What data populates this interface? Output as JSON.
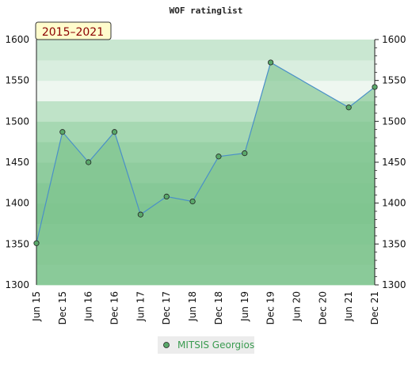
{
  "chart_data": {
    "type": "area",
    "title": "WOF ratinglist",
    "period_badge": "2015–2021",
    "ylim": [
      1300,
      1600
    ],
    "y_ticks": [
      1300,
      1350,
      1400,
      1450,
      1500,
      1550,
      1600
    ],
    "x_ticks": [
      "Jun 15",
      "Dec 15",
      "Jun 16",
      "Dec 16",
      "Jun 17",
      "Dec 17",
      "Jun 18",
      "Dec 18",
      "Jun 19",
      "Dec 19",
      "Jun 20",
      "Dec 20",
      "Jun 21",
      "Dec 21"
    ],
    "grid": true,
    "legend_position": "bottom",
    "series": [
      {
        "name": "MITSIS Georgios",
        "color": "#4a90c8",
        "fill": "#7fc48f",
        "marker": "#5aa86a",
        "points": [
          {
            "x": "Jun 15",
            "y": 1351
          },
          {
            "x": "Dec 15",
            "y": 1487
          },
          {
            "x": "Jun 16",
            "y": 1450
          },
          {
            "x": "Dec 16",
            "y": 1487
          },
          {
            "x": "Jun 17",
            "y": 1386
          },
          {
            "x": "Dec 17",
            "y": 1408
          },
          {
            "x": "Jun 18",
            "y": 1402
          },
          {
            "x": "Dec 18",
            "y": 1457
          },
          {
            "x": "Jun 19",
            "y": 1461
          },
          {
            "x": "Dec 19",
            "y": 1572
          },
          {
            "x": "Jun 21",
            "y": 1517
          },
          {
            "x": "Dec 21",
            "y": 1542
          }
        ]
      }
    ]
  }
}
